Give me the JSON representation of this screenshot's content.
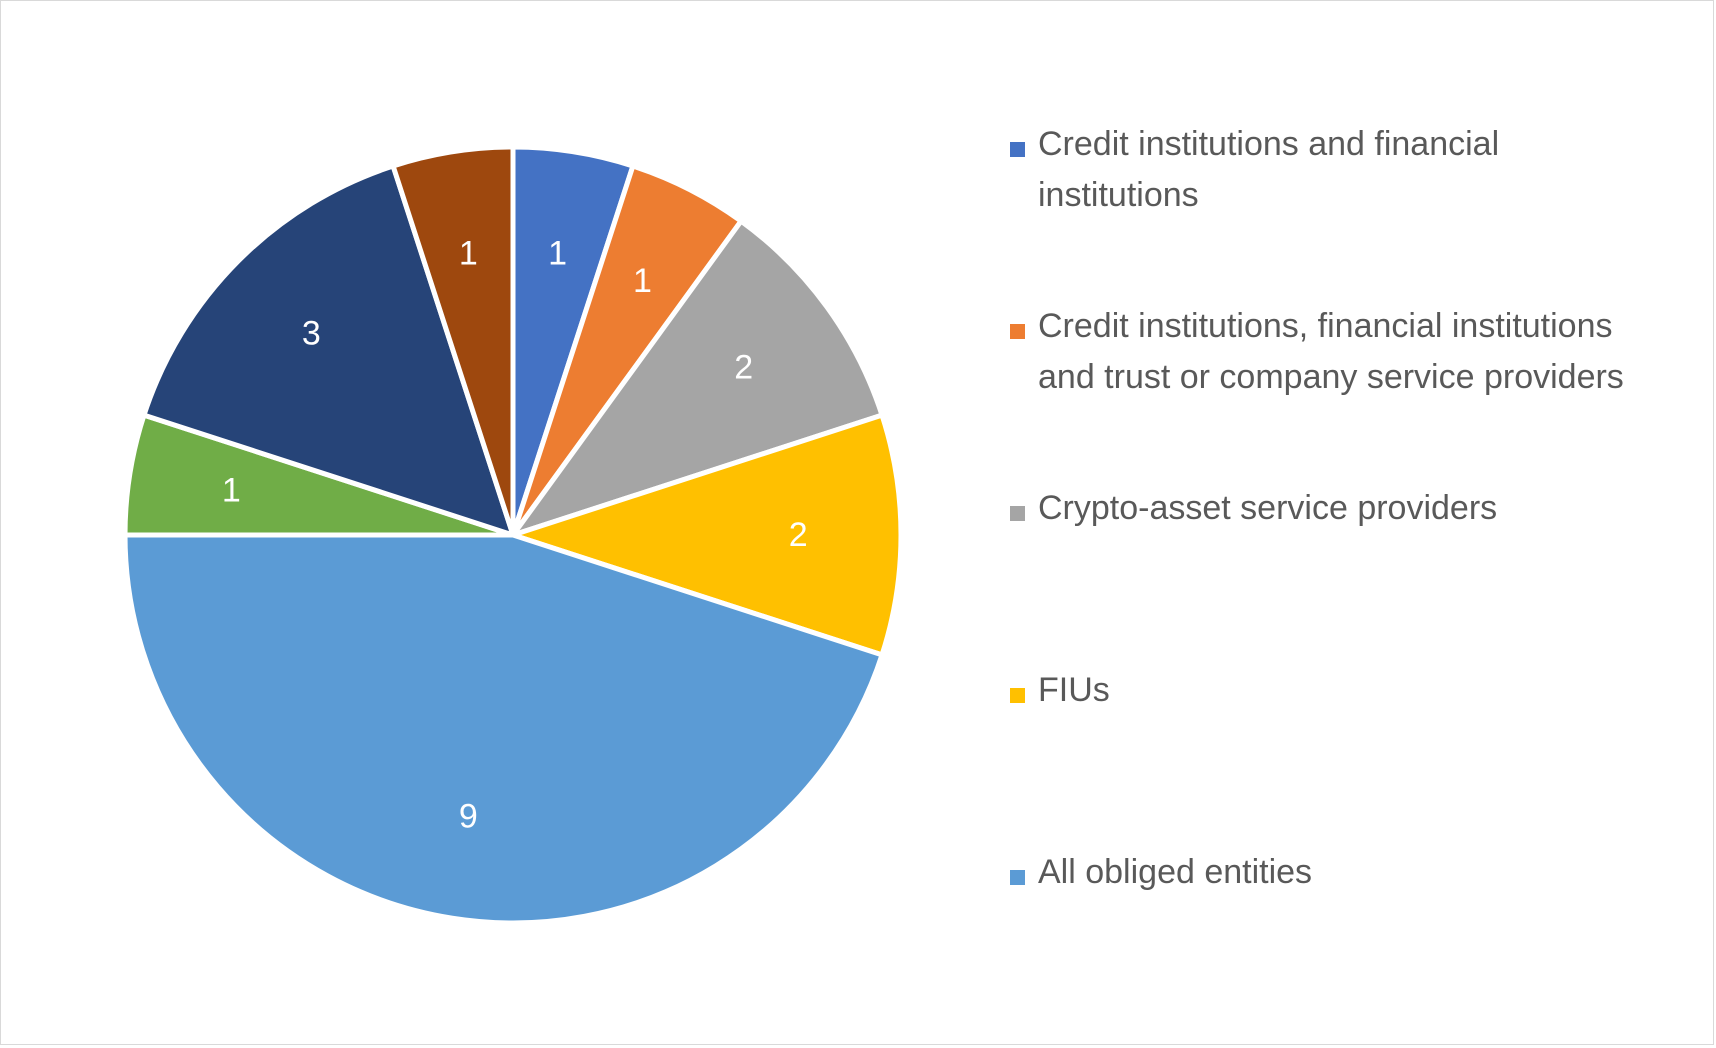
{
  "chart_data": {
    "type": "pie",
    "title": "",
    "start_angle_deg": 0,
    "direction": "clockwise",
    "legend_position": "right",
    "slices": [
      {
        "label": "Credit institutions and financial institutions",
        "value": 1,
        "color": "#4472C4",
        "in_legend": true
      },
      {
        "label": "Credit institutions, financial institutions and trust or company service providers",
        "value": 1,
        "color": "#ED7D31",
        "in_legend": true
      },
      {
        "label": "Crypto-asset service providers",
        "value": 2,
        "color": "#A5A5A5",
        "in_legend": true
      },
      {
        "label": "FIUs",
        "value": 2,
        "color": "#FFC000",
        "in_legend": true
      },
      {
        "label": "All obliged entities",
        "value": 9,
        "color": "#5B9BD5",
        "in_legend": true
      },
      {
        "label": "",
        "value": 1,
        "color": "#70AD47",
        "in_legend": false
      },
      {
        "label": "",
        "value": 3,
        "color": "#264478",
        "in_legend": false
      },
      {
        "label": "",
        "value": 1,
        "color": "#9E480E",
        "in_legend": false
      }
    ],
    "legend": [
      {
        "text": "Credit institutions and financial\ninstitutions",
        "color": "#4472C4"
      },
      {
        "text": "Credit institutions, financial institutions\nand trust or company service providers",
        "color": "#ED7D31"
      },
      {
        "text": "Crypto-asset service providers",
        "color": "#A5A5A5"
      },
      {
        "text": "FIUs",
        "color": "#FFC000"
      },
      {
        "text": "All obliged entities",
        "color": "#5B9BD5"
      }
    ]
  }
}
